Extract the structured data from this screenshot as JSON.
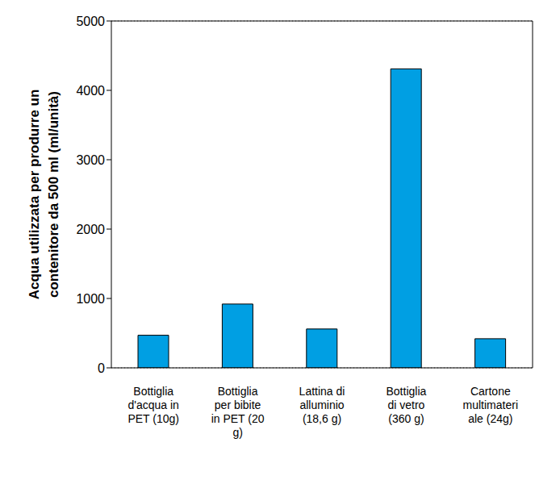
{
  "chart_data": {
    "type": "bar",
    "y_label": [
      "Acqua utilizzata per produrre un",
      "contenitore da 500 ml  (ml/unità)"
    ],
    "categories": [
      "Bottiglia d'acqua in PET (10g)",
      "Bottiglia per bibite in PET (20 g)",
      "Lattina di alluminio (18,6 g)",
      "Bottiglia di vetro (360 g)",
      "Cartone multimateriale (24g)"
    ],
    "values": [
      470,
      920,
      560,
      4310,
      420
    ],
    "color": "#009fe3",
    "ylim": [
      0,
      5000
    ],
    "yticks": [
      0,
      1000,
      2000,
      3000,
      4000,
      5000
    ],
    "grid": true
  }
}
